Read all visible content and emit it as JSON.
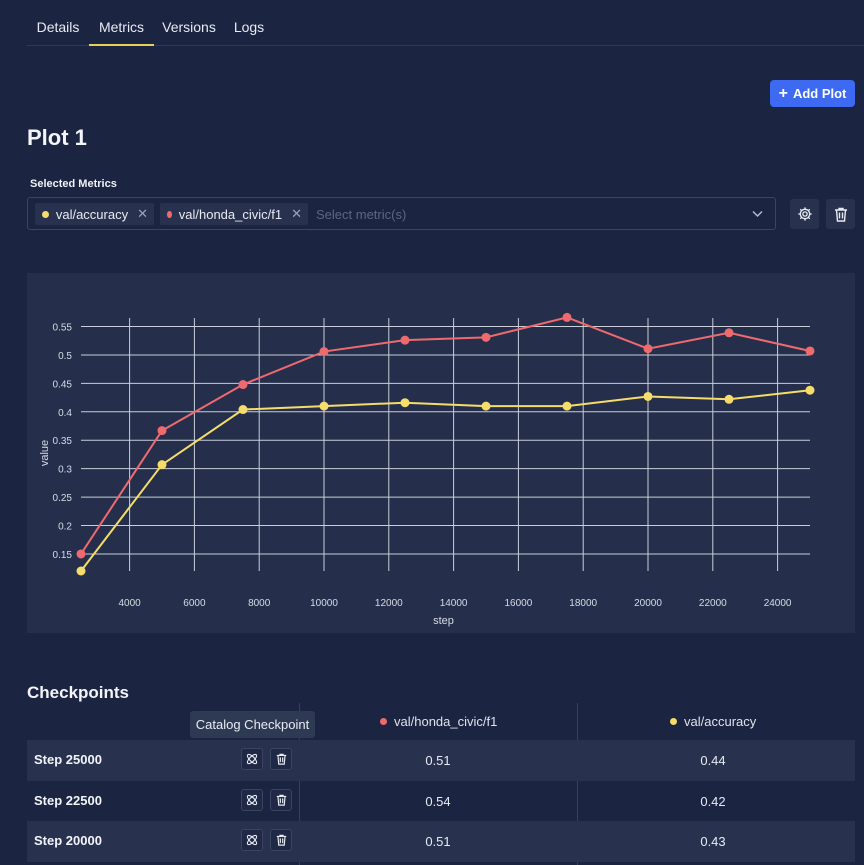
{
  "tabs": [
    {
      "label": "Details",
      "active": false
    },
    {
      "label": "Metrics",
      "active": true
    },
    {
      "label": "Versions",
      "active": false
    },
    {
      "label": "Logs",
      "active": false
    }
  ],
  "add_plot_label": "Add Plot",
  "plot": {
    "title": "Plot 1",
    "selected_metrics_label": "Selected Metrics",
    "chips": [
      {
        "label": "val/accuracy",
        "color": "#f6dc6a"
      },
      {
        "label": "val/honda_civic/f1",
        "color": "#ef6a6e"
      }
    ],
    "placeholder": "Select metric(s)"
  },
  "chart_data": {
    "type": "line",
    "xlabel": "step",
    "ylabel": "value",
    "xlim": [
      2500,
      25000
    ],
    "ylim": [
      0.12,
      0.565
    ],
    "x_ticks": [
      4000,
      6000,
      8000,
      10000,
      12000,
      14000,
      16000,
      18000,
      20000,
      22000,
      24000
    ],
    "y_ticks": [
      0.15,
      0.2,
      0.25,
      0.3,
      0.35,
      0.4,
      0.45,
      0.5,
      0.55
    ],
    "y_tick_labels": [
      "0.15",
      "0.2",
      "0.25",
      "0.3",
      "0.35",
      "0.4",
      "0.45",
      "0.5",
      "0.55"
    ],
    "grid": true,
    "x": [
      2500,
      5000,
      7500,
      10000,
      12500,
      15000,
      17500,
      20000,
      22500,
      25000
    ],
    "series": [
      {
        "name": "val/honda_civic/f1",
        "color": "#ef6a6e",
        "values": [
          0.15,
          0.367,
          0.448,
          0.506,
          0.526,
          0.531,
          0.566,
          0.511,
          0.539,
          0.507
        ]
      },
      {
        "name": "val/accuracy",
        "color": "#f6dc6a",
        "values": [
          0.12,
          0.307,
          0.404,
          0.41,
          0.416,
          0.41,
          0.41,
          0.427,
          0.422,
          0.438
        ]
      }
    ]
  },
  "checkpoints": {
    "title": "Checkpoints",
    "tooltip": "Catalog Checkpoint",
    "columns": [
      {
        "label": "val/honda_civic/f1",
        "color": "#ef6a6e"
      },
      {
        "label": "val/accuracy",
        "color": "#f6dc6a"
      }
    ],
    "rows": [
      {
        "step": "Step 25000",
        "f1": "0.51",
        "accuracy": "0.44"
      },
      {
        "step": "Step 22500",
        "f1": "0.54",
        "accuracy": "0.42"
      },
      {
        "step": "Step 20000",
        "f1": "0.51",
        "accuracy": "0.43"
      }
    ]
  }
}
